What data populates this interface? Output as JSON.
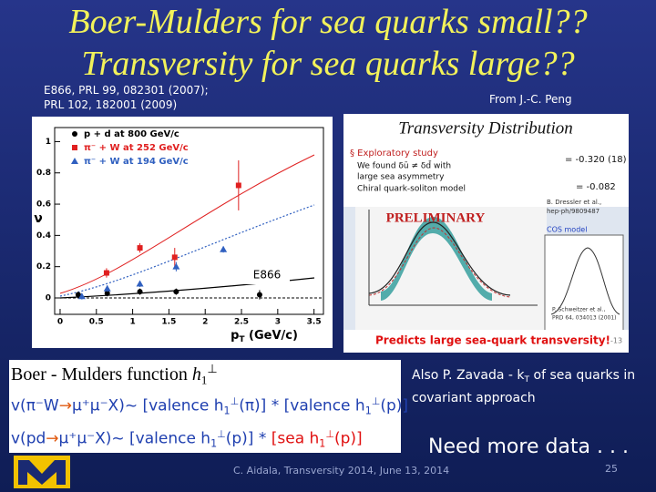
{
  "title": {
    "line1": "Boer-Mulders for sea quarks small??",
    "line2": "Transversity for sea quarks large??"
  },
  "reference": {
    "line1": "E866, PRL 99, 082301 (2007);",
    "line2": "PRL 102, 182001 (2009)"
  },
  "credit": "From J.-C. Peng",
  "left_figure": {
    "xlim": [
      -0.075,
      3.63
    ],
    "ylim": [
      -0.105,
      1.09
    ],
    "xticks": [
      0,
      0.5,
      1,
      1.5,
      2,
      2.5,
      3,
      3.5
    ],
    "yticks": [
      0,
      0.2,
      0.4,
      0.6,
      0.8,
      1
    ],
    "x_label": "p",
    "x_label_sub": "T",
    "x_label_unit": " (GeV/c)",
    "y_label": "ν",
    "annotation": "E866",
    "series": [
      {
        "name": "p + d at 800 GeV/c",
        "color": "#000000",
        "marker": "circle",
        "x": [
          0.25,
          0.65,
          1.1,
          1.6,
          2.75
        ],
        "values": [
          0.02,
          0.03,
          0.04,
          0.04,
          0.02
        ],
        "errors": [
          0.02,
          0.02,
          0.02,
          0.02,
          0.03
        ]
      },
      {
        "name": "π⁻ + W at 252 GeV/c",
        "color": "#e02020",
        "marker": "square",
        "x": [
          0.64,
          1.1,
          1.58,
          2.46
        ],
        "values": [
          0.16,
          0.32,
          0.26,
          0.72
        ],
        "errors": [
          0.03,
          0.03,
          0.06,
          0.16
        ]
      },
      {
        "name": "π⁻ + W at 194 GeV/c",
        "color": "#3060c0",
        "marker": "triangle",
        "x": [
          0.3,
          0.65,
          1.1,
          1.6,
          2.25
        ],
        "values": [
          0.01,
          0.06,
          0.09,
          0.2,
          0.31
        ],
        "errors": [
          0.02,
          0.02,
          0.02,
          0.03,
          0.02
        ]
      }
    ]
  },
  "right_figure": {
    "header": "Transversity Distribution",
    "bullet": "§ Exploratory study",
    "item1": "We found δū ≠ δd̄ with",
    "item2": "large sea asymmetry",
    "item3": "Chiral quark-soliton model",
    "eq1": "= -0.320 (18)",
    "eq2": "= -0.082",
    "stamp": "PRELIMINARY",
    "ref1a": "B. Dressler et al.,",
    "ref1b": "hep-ph/9809487",
    "model": "COS model",
    "ref2a": "P. Schweitzer et al.,",
    "ref2b": "PRD 64, 034013 (2001)",
    "footer": "Predicts large sea-quark transversity!",
    "page": "-13"
  },
  "formula": {
    "line1": [
      {
        "text": "Boer - Mulders function ",
        "style": "plain"
      },
      {
        "text": "h",
        "style": "italic"
      },
      {
        "text": "1",
        "style": "sub"
      },
      {
        "text": "⊥",
        "style": "sup"
      }
    ],
    "line2": [
      {
        "text": "v(π⁻W",
        "style": "plain"
      },
      {
        "text": "→",
        "style": "arrow"
      },
      {
        "text": "μ⁺μ⁻X)~ [valence h",
        "style": "plain"
      },
      {
        "text": "1",
        "style": "sub"
      },
      {
        "text": "⊥",
        "style": "sup"
      },
      {
        "text": "(π)]  * [valence h",
        "style": "plain"
      },
      {
        "text": "1",
        "style": "sub"
      },
      {
        "text": "⊥",
        "style": "sup"
      },
      {
        "text": "(p)]",
        "style": "plain"
      }
    ],
    "line3": [
      {
        "text": "v(pd",
        "style": "plain"
      },
      {
        "text": "→",
        "style": "arrow"
      },
      {
        "text": "μ⁺μ⁻X)~ [valence h",
        "style": "plain"
      },
      {
        "text": "1",
        "style": "sub"
      },
      {
        "text": "⊥",
        "style": "sup"
      },
      {
        "text": "(p)] * ",
        "style": "plain"
      },
      {
        "text": "[sea h",
        "style": "red"
      },
      {
        "text": "1",
        "style": "redsub"
      },
      {
        "text": "⊥",
        "style": "redsup"
      },
      {
        "text": "(p)]",
        "style": "red"
      }
    ]
  },
  "note": [
    {
      "text": "Also P. Zavada - k",
      "style": "plain"
    },
    {
      "text": "T",
      "style": "sub"
    },
    {
      "text": " of sea quarks in covariant approach",
      "style": "plain"
    }
  ],
  "call": "Need more data . . .",
  "footer": "C. Aidala, Transversity 2014, June 13, 2014",
  "slide_number": "25"
}
